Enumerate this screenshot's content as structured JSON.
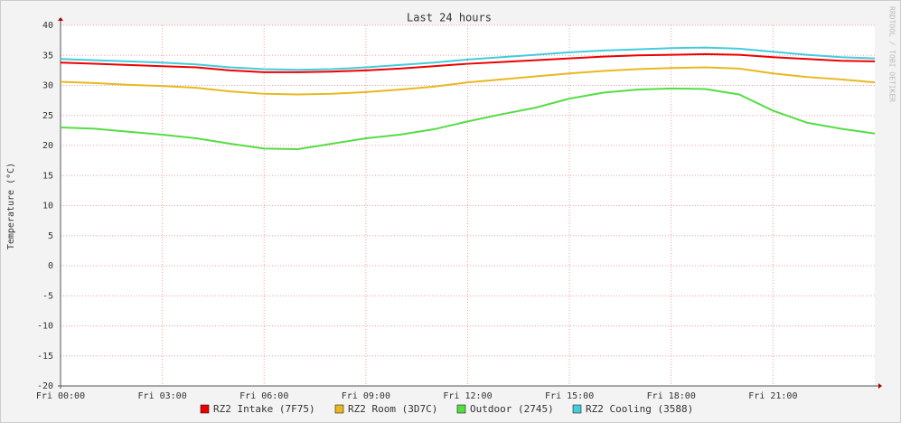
{
  "chart_data": {
    "type": "line",
    "title": "Last 24 hours",
    "y_label": "Temperature (°C)",
    "side_text": "RRDTOOL / TOBI OETIKER",
    "x": [
      0,
      1,
      2,
      3,
      4,
      5,
      6,
      7,
      8,
      9,
      10,
      11,
      12,
      13,
      14,
      15,
      16,
      17,
      18,
      19,
      20,
      21,
      22,
      23,
      24
    ],
    "xlim": [
      0,
      24
    ],
    "xticks": [
      {
        "value": 0,
        "label": "Fri 00:00"
      },
      {
        "value": 3,
        "label": "Fri 03:00"
      },
      {
        "value": 6,
        "label": "Fri 06:00"
      },
      {
        "value": 9,
        "label": "Fri 09:00"
      },
      {
        "value": 12,
        "label": "Fri 12:00"
      },
      {
        "value": 15,
        "label": "Fri 15:00"
      },
      {
        "value": 18,
        "label": "Fri 18:00"
      },
      {
        "value": 21,
        "label": "Fri 21:00"
      }
    ],
    "ylim": [
      -20,
      40
    ],
    "yticks": [
      -20,
      -15,
      -10,
      -5,
      0,
      5,
      10,
      15,
      20,
      25,
      30,
      35,
      40
    ],
    "grid": true,
    "series": [
      {
        "name": "RZ2 Intake (7F75)",
        "color": "#ee0000",
        "values": [
          33.8,
          33.6,
          33.4,
          33.2,
          33,
          32.5,
          32.2,
          32.2,
          32.3,
          32.5,
          32.8,
          33.2,
          33.6,
          33.9,
          34.2,
          34.5,
          34.8,
          35,
          35.1,
          35.2,
          35.1,
          34.7,
          34.4,
          34.1,
          34
        ]
      },
      {
        "name": "RZ2 Room (3D7C)",
        "color": "#e8b820",
        "values": [
          30.6,
          30.4,
          30.1,
          29.9,
          29.6,
          29,
          28.6,
          28.5,
          28.6,
          28.9,
          29.3,
          29.8,
          30.5,
          31,
          31.5,
          32,
          32.4,
          32.7,
          32.9,
          33,
          32.8,
          32,
          31.4,
          31,
          30.5
        ]
      },
      {
        "name": "Outdoor (2745)",
        "color": "#55dd44",
        "values": [
          23,
          22.8,
          22.3,
          21.8,
          21.2,
          20.3,
          19.5,
          19.4,
          20.3,
          21.2,
          21.8,
          22.7,
          24,
          25.2,
          26.3,
          27.8,
          28.8,
          29.3,
          29.5,
          29.4,
          28.5,
          25.8,
          23.8,
          22.8,
          22
        ]
      },
      {
        "name": "RZ2 Cooling (3588)",
        "color": "#44ccdd",
        "values": [
          34.4,
          34.2,
          34,
          33.8,
          33.5,
          33,
          32.7,
          32.6,
          32.7,
          33,
          33.4,
          33.8,
          34.3,
          34.7,
          35.1,
          35.5,
          35.8,
          36,
          36.2,
          36.3,
          36.1,
          35.6,
          35.1,
          34.7,
          34.5
        ]
      }
    ]
  }
}
